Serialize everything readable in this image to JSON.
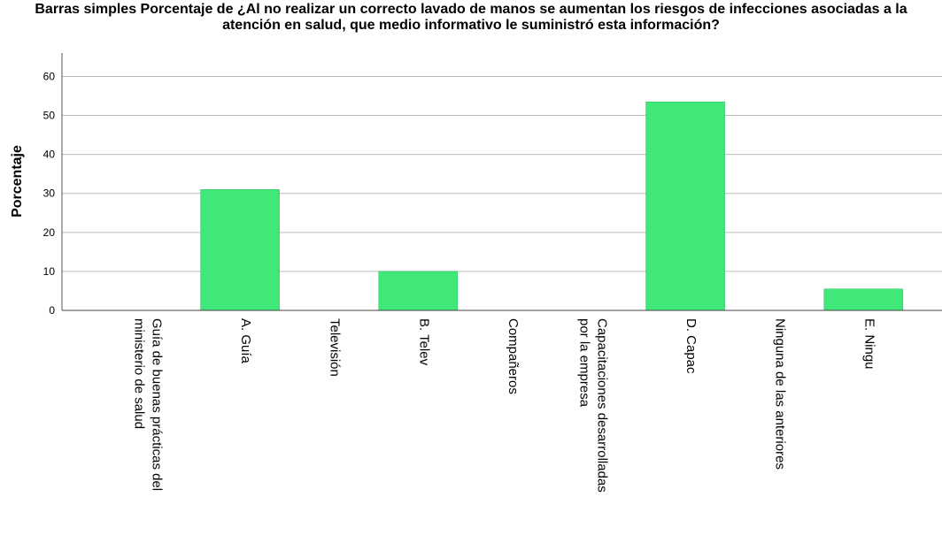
{
  "chart_data": {
    "type": "bar",
    "title": "Barras simples Porcentaje de ¿Al no realizar un correcto lavado de manos se aumentan los riesgos de infecciones asociadas a la atención en salud, que medio informativo le suministró esta información?",
    "y_label": "Porcentaje",
    "categories": [
      "Guía de buenas prácticas del ministerio de salud",
      "A. Guía",
      "Televisión",
      "B. Telev",
      "Compañeros",
      "Capacitaciones desarrolladas por la empresa",
      "D. Capac",
      "Ninguna de las anteriores",
      "E. Ningu"
    ],
    "values": [
      0,
      31,
      0,
      10,
      0,
      0,
      53.5,
      0,
      5.5
    ],
    "color": "#40e87a",
    "ylim": [
      0,
      66
    ],
    "yticks": [
      0,
      10,
      20,
      30,
      40,
      50,
      60
    ],
    "grid": true
  }
}
